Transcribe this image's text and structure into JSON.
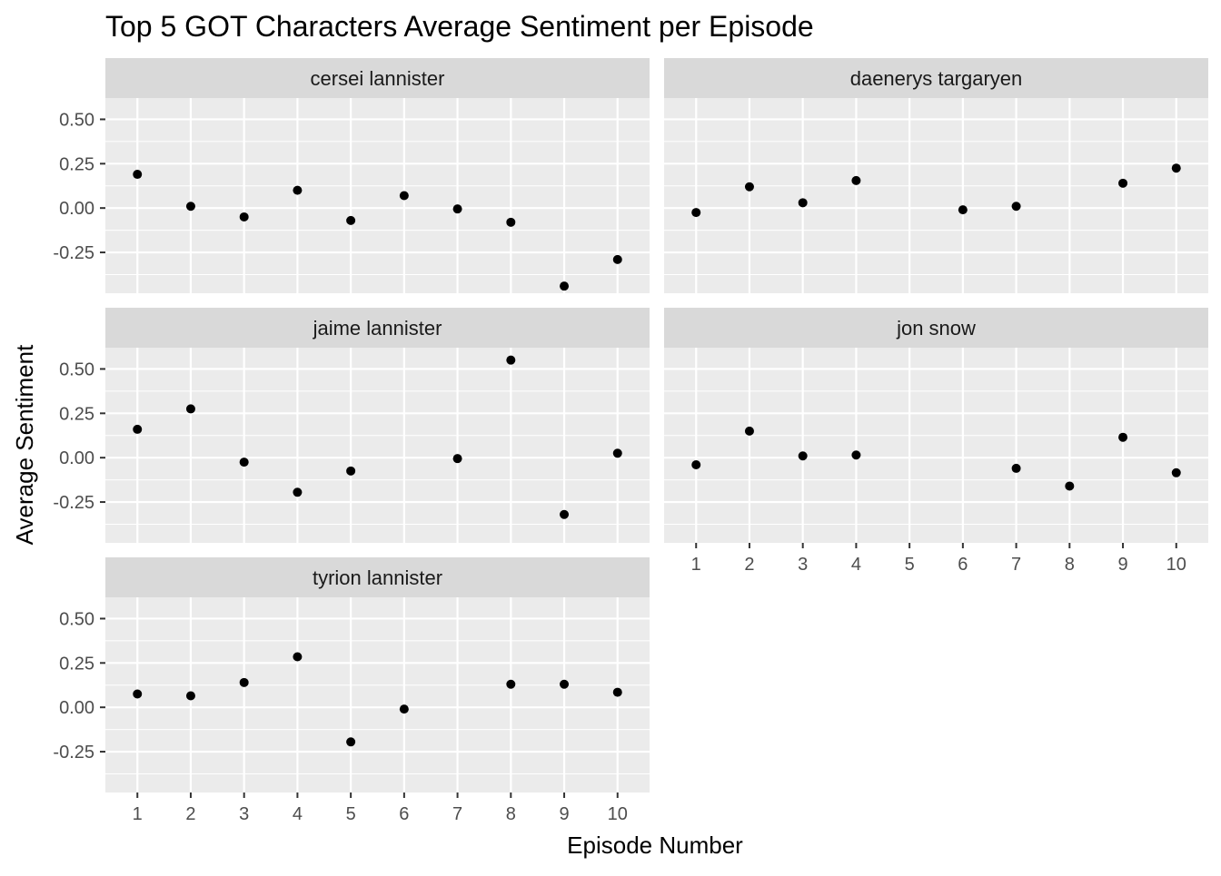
{
  "chart_data": {
    "type": "scatter",
    "title": "Top 5 GOT Characters Average Sentiment per Episode",
    "xlabel": "Episode Number",
    "ylabel": "Average Sentiment",
    "x_ticks": [
      1,
      2,
      3,
      4,
      5,
      6,
      7,
      8,
      9,
      10
    ],
    "y_ticks": [
      0.5,
      0.25,
      0.0,
      -0.25
    ],
    "y_tick_labels": [
      "0.50",
      "0.25",
      "0.00",
      "-0.25"
    ],
    "xlim": [
      0.4,
      10.6
    ],
    "ylim": [
      -0.48,
      0.62
    ],
    "grid": true,
    "layout": "facet grid, 2 columns",
    "colors": {
      "panel_background": "#EBEBEB",
      "strip_background": "#D9D9D9",
      "grid": "#FFFFFF",
      "point": "#000000",
      "axis_text": "#4D4D4D"
    },
    "series": [
      {
        "name": "cersei lannister",
        "points": [
          {
            "x": 1,
            "y": 0.19
          },
          {
            "x": 2,
            "y": 0.01
          },
          {
            "x": 3,
            "y": -0.05
          },
          {
            "x": 4,
            "y": 0.1
          },
          {
            "x": 5,
            "y": -0.07
          },
          {
            "x": 6,
            "y": 0.07
          },
          {
            "x": 7,
            "y": -0.005
          },
          {
            "x": 8,
            "y": -0.08
          },
          {
            "x": 9,
            "y": -0.44
          },
          {
            "x": 10,
            "y": -0.29
          }
        ]
      },
      {
        "name": "daenerys targaryen",
        "points": [
          {
            "x": 1,
            "y": -0.025
          },
          {
            "x": 2,
            "y": 0.12
          },
          {
            "x": 3,
            "y": 0.03
          },
          {
            "x": 4,
            "y": 0.155
          },
          {
            "x": 6,
            "y": -0.01
          },
          {
            "x": 7,
            "y": 0.01
          },
          {
            "x": 9,
            "y": 0.14
          },
          {
            "x": 10,
            "y": 0.225
          }
        ]
      },
      {
        "name": "jaime lannister",
        "points": [
          {
            "x": 1,
            "y": 0.16
          },
          {
            "x": 2,
            "y": 0.275
          },
          {
            "x": 3,
            "y": -0.025
          },
          {
            "x": 4,
            "y": -0.195
          },
          {
            "x": 5,
            "y": -0.075
          },
          {
            "x": 7,
            "y": -0.005
          },
          {
            "x": 8,
            "y": 0.55
          },
          {
            "x": 9,
            "y": -0.32
          },
          {
            "x": 10,
            "y": 0.025
          }
        ]
      },
      {
        "name": "jon snow",
        "points": [
          {
            "x": 1,
            "y": -0.04
          },
          {
            "x": 2,
            "y": 0.15
          },
          {
            "x": 3,
            "y": 0.01
          },
          {
            "x": 4,
            "y": 0.015
          },
          {
            "x": 7,
            "y": -0.06
          },
          {
            "x": 8,
            "y": -0.16
          },
          {
            "x": 9,
            "y": 0.115
          },
          {
            "x": 10,
            "y": -0.085
          }
        ]
      },
      {
        "name": "tyrion lannister",
        "points": [
          {
            "x": 1,
            "y": 0.075
          },
          {
            "x": 2,
            "y": 0.065
          },
          {
            "x": 3,
            "y": 0.14
          },
          {
            "x": 4,
            "y": 0.285
          },
          {
            "x": 5,
            "y": -0.195
          },
          {
            "x": 6,
            "y": -0.01
          },
          {
            "x": 8,
            "y": 0.13
          },
          {
            "x": 9,
            "y": 0.13
          },
          {
            "x": 10,
            "y": 0.085
          }
        ]
      }
    ]
  }
}
